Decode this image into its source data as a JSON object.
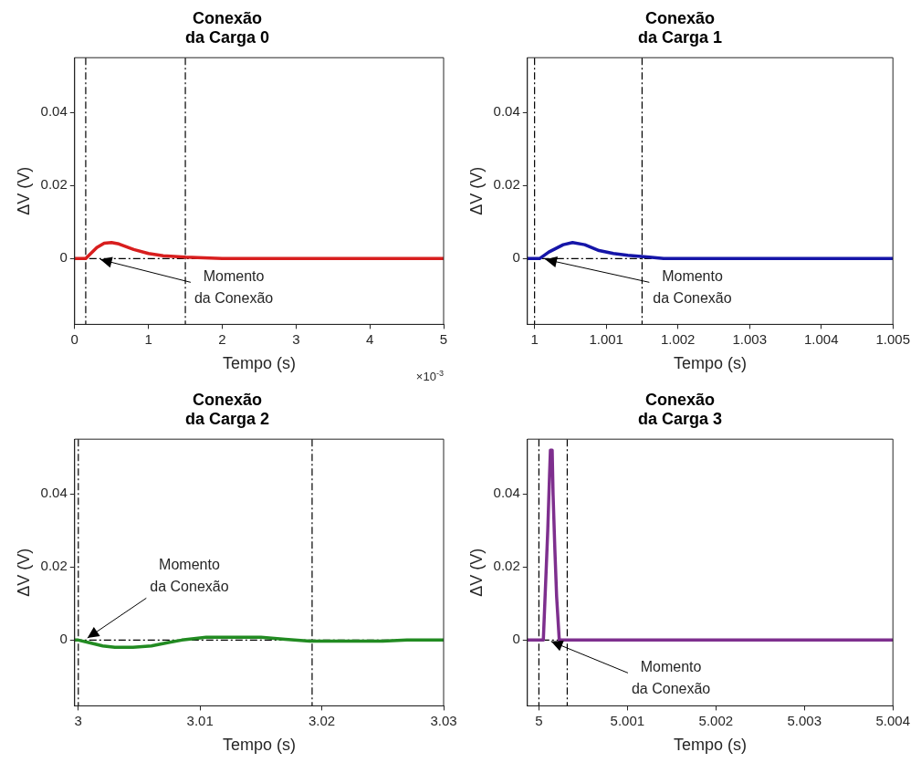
{
  "chart_data": [
    {
      "type": "line",
      "title": "Conexão da Carga 0",
      "xlabel": "Tempo (s)",
      "ylabel": "ΔV (V)",
      "xlim": [
        0,
        5
      ],
      "xticks": [
        0,
        1,
        2,
        3,
        4,
        5
      ],
      "ylim": [
        -0.018,
        0.055
      ],
      "yticks": [
        0,
        0.02,
        0.04
      ],
      "grid": false,
      "line_style": "solid",
      "series": [
        {
          "color": "#d81e1e",
          "x": [
            0,
            0.15,
            0.3,
            0.4,
            0.5,
            0.6,
            0.8,
            1,
            1.2,
            1.5,
            2,
            5
          ],
          "values": [
            0,
            0,
            0.003,
            0.0042,
            0.0044,
            0.004,
            0.0025,
            0.0014,
            0.0008,
            0.0004,
            0,
            0
          ]
        }
      ],
      "ref_lines": [
        {
          "axis": "y",
          "value": 0,
          "color": "#000000",
          "line_style": "dashed"
        },
        {
          "axis": "x",
          "value": 0.15,
          "color": "#000000",
          "line_style": "dashed"
        },
        {
          "axis": "x",
          "value": 1.5,
          "color": "#000000",
          "line_style": "dashed"
        }
      ],
      "annotations": [
        "×10$^{-3}$",
        {
          "text": "Momento da Conexão",
          "x": 0.3,
          "y": 0
        }
      ]
    },
    {
      "type": "line",
      "title": "Conexão da Carga 1",
      "xlabel": "Tempo (s)",
      "ylabel": "ΔV (V)",
      "xlim": [
        0.9999,
        1.005
      ],
      "xticks": [
        1,
        1.001,
        1.002,
        1.003,
        1.004,
        1.005
      ],
      "ylim": [
        -0.018,
        0.055
      ],
      "yticks": [
        0,
        0.02,
        0.04
      ],
      "grid": false,
      "line_style": "solid",
      "series": [
        {
          "color": "#1515a8",
          "x": [
            0.9999,
            1.00007,
            1.0002,
            1.0004,
            1.00053,
            1.0007,
            1.0009,
            1.0011,
            1.0013,
            1.0016,
            1.0018,
            1.005
          ],
          "values": [
            0,
            0,
            0.0018,
            0.0038,
            0.0044,
            0.0038,
            0.0022,
            0.0014,
            0.0009,
            0.0004,
            0,
            0
          ]
        }
      ],
      "ref_lines": [
        {
          "axis": "y",
          "value": 0,
          "color": "#000000",
          "line_style": "dashed"
        },
        {
          "axis": "x",
          "value": 1,
          "color": "#000000",
          "line_style": "dashed"
        },
        {
          "axis": "x",
          "value": 1.0015,
          "color": "#000000",
          "line_style": "dashed"
        }
      ],
      "annotations": [
        {
          "text": "Momento da Conexão",
          "x": 1.0001,
          "y": 0
        }
      ]
    },
    {
      "type": "line",
      "title": "Conexão da Carga 2",
      "xlabel": "Tempo (s)",
      "ylabel": "ΔV (V)",
      "xlim": [
        2.9997,
        3.03
      ],
      "xticks": [
        3,
        3.01,
        3.02,
        3.03
      ],
      "ylim": [
        -0.018,
        0.055
      ],
      "yticks": [
        0,
        0.02,
        0.04
      ],
      "grid": false,
      "line_style": "solid",
      "series": [
        {
          "color": "#228b22",
          "x": [
            2.9997,
            3,
            3.001,
            3.002,
            3.003,
            3.0045,
            3.006,
            3.0075,
            3.0085,
            3.0105,
            3.013,
            3.015,
            3.017,
            3.019,
            3.022,
            3.025,
            3.027,
            3.03
          ],
          "values": [
            0,
            0,
            -0.0008,
            -0.0016,
            -0.002,
            -0.002,
            -0.0016,
            -0.0006,
            0,
            0.0008,
            0.0008,
            0.0008,
            0.0002,
            -0.0003,
            -0.0003,
            -0.0003,
            0,
            0
          ]
        }
      ],
      "ref_lines": [
        {
          "axis": "y",
          "value": 0,
          "color": "#000000",
          "line_style": "dashed"
        },
        {
          "axis": "x",
          "value": 3,
          "color": "#000000",
          "line_style": "dashed"
        },
        {
          "axis": "x",
          "value": 3.0192,
          "color": "#000000",
          "line_style": "dashed"
        }
      ],
      "annotations": [
        {
          "text": "Momento da Conexão",
          "x": 3.0005,
          "y": 0
        }
      ]
    },
    {
      "type": "line",
      "title": "Conexão da Carga 3",
      "xlabel": "Tempo (s)",
      "ylabel": "ΔV (V)",
      "xlim": [
        4.99987,
        5.004
      ],
      "xticks": [
        5,
        5.001,
        5.002,
        5.003,
        5.004
      ],
      "ylim": [
        -0.018,
        0.055
      ],
      "yticks": [
        0,
        0.02,
        0.04
      ],
      "grid": false,
      "line_style": "solid",
      "series": [
        {
          "color": "#7e2f8e",
          "x": [
            4.99987,
            5.00005,
            5.00008,
            5.0001,
            5.00012,
            5.00013,
            5.00015,
            5.00016,
            5.00018,
            5.0002,
            5.00023,
            5.004
          ],
          "values": [
            0,
            0,
            0.018,
            0.03,
            0.045,
            0.052,
            0.052,
            0.04,
            0.025,
            0.012,
            0,
            0
          ]
        }
      ],
      "ref_lines": [
        {
          "axis": "y",
          "value": 0,
          "color": "#000000",
          "line_style": "dashed"
        },
        {
          "axis": "x",
          "value": 5,
          "color": "#000000",
          "line_style": "dashed"
        },
        {
          "axis": "x",
          "value": 5.00032,
          "color": "#000000",
          "line_style": "dashed"
        }
      ],
      "annotations": [
        {
          "text": "Momento da Conexão",
          "x": 5.0001,
          "y": 0
        }
      ]
    }
  ]
}
